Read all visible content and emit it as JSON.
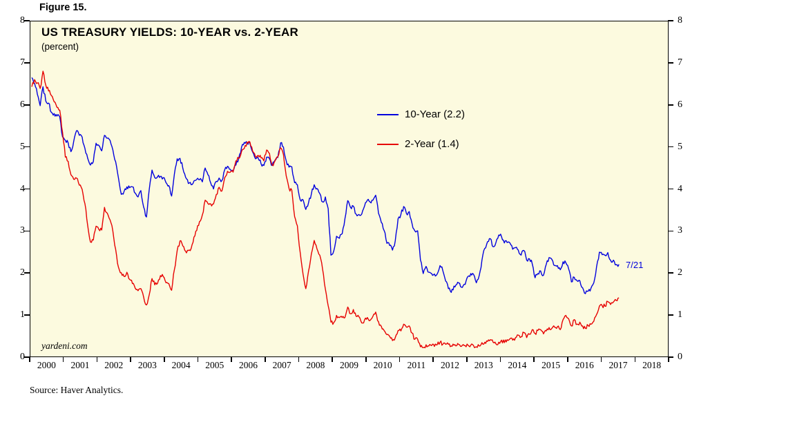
{
  "figure": {
    "label": "Figure 15.",
    "source": "Source: Haver Analytics.",
    "watermark": "yardeni.com",
    "annotation": "7/21"
  },
  "chart_data": {
    "type": "line",
    "title": "US TREASURY YIELDS: 10-YEAR vs. 2-YEAR",
    "subtitle": "(percent)",
    "ylim": [
      0,
      8
    ],
    "y_ticks": [
      0,
      1,
      2,
      3,
      4,
      5,
      6,
      7,
      8
    ],
    "y_axis_sides": "both",
    "x_range_years": [
      2000,
      2019
    ],
    "x_tick_years": [
      2000,
      2001,
      2002,
      2003,
      2004,
      2005,
      2006,
      2007,
      2008,
      2009,
      2010,
      2011,
      2012,
      2013,
      2014,
      2015,
      2016,
      2017,
      2018
    ],
    "frequency": "monthly",
    "x_start": "2000-01",
    "x_end": "2017-07",
    "grid": false,
    "plot_background": "#FCFADF",
    "legend_position": "upper-middle",
    "legend": [
      {
        "label": "10-Year (2.2)"
      },
      {
        "label": "2-Year (1.4)"
      }
    ],
    "series": [
      {
        "name": "10-Year",
        "latest_value": 2.2,
        "color": "#0000DD",
        "values": [
          6.66,
          6.52,
          6.26,
          5.99,
          6.44,
          6.1,
          6.05,
          5.83,
          5.8,
          5.74,
          5.72,
          5.24,
          5.16,
          5.1,
          4.89,
          5.14,
          5.39,
          5.28,
          5.24,
          4.97,
          4.73,
          4.57,
          4.65,
          5.09,
          5.04,
          4.91,
          5.28,
          5.21,
          5.16,
          4.93,
          4.65,
          4.26,
          3.87,
          3.94,
          4.05,
          4.03,
          4.05,
          3.9,
          3.81,
          3.96,
          3.57,
          3.33,
          3.98,
          4.45,
          4.27,
          4.29,
          4.3,
          4.27,
          4.15,
          4.08,
          3.83,
          4.35,
          4.72,
          4.73,
          4.5,
          4.28,
          4.13,
          4.1,
          4.19,
          4.23,
          4.22,
          4.17,
          4.5,
          4.34,
          4.14,
          4.0,
          4.18,
          4.26,
          4.2,
          4.46,
          4.54,
          4.47,
          4.42,
          4.57,
          4.72,
          4.99,
          5.11,
          5.11,
          5.09,
          4.88,
          4.72,
          4.73,
          4.6,
          4.56,
          4.76,
          4.72,
          4.56,
          4.69,
          4.75,
          5.1,
          5.0,
          4.67,
          4.52,
          4.53,
          4.15,
          4.1,
          3.74,
          3.74,
          3.51,
          3.68,
          3.88,
          4.1,
          4.01,
          3.89,
          3.69,
          3.81,
          3.53,
          2.42,
          2.52,
          2.87,
          2.82,
          2.93,
          3.29,
          3.72,
          3.56,
          3.59,
          3.4,
          3.39,
          3.4,
          3.59,
          3.73,
          3.69,
          3.73,
          3.85,
          3.42,
          3.2,
          3.01,
          2.7,
          2.65,
          2.54,
          2.76,
          3.29,
          3.39,
          3.58,
          3.41,
          3.46,
          3.17,
          3.0,
          3.0,
          2.3,
          1.98,
          2.15,
          2.01,
          1.98,
          1.97,
          1.97,
          2.17,
          2.05,
          1.8,
          1.62,
          1.53,
          1.68,
          1.72,
          1.75,
          1.65,
          1.72,
          1.91,
          1.98,
          1.96,
          1.76,
          1.93,
          2.3,
          2.58,
          2.74,
          2.81,
          2.62,
          2.72,
          2.9,
          2.86,
          2.71,
          2.72,
          2.71,
          2.56,
          2.6,
          2.54,
          2.42,
          2.53,
          2.3,
          2.33,
          2.21,
          1.88,
          1.98,
          2.04,
          1.94,
          2.2,
          2.36,
          2.32,
          2.17,
          2.17,
          2.07,
          2.26,
          2.24,
          2.09,
          1.78,
          1.89,
          1.81,
          1.81,
          1.64,
          1.5,
          1.56,
          1.63,
          1.76,
          2.14,
          2.49,
          2.43,
          2.42,
          2.48,
          2.3,
          2.3,
          2.19,
          2.2
        ]
      },
      {
        "name": "2-Year",
        "latest_value": 1.4,
        "color": "#E60000",
        "values": [
          6.44,
          6.61,
          6.53,
          6.4,
          6.81,
          6.48,
          6.34,
          6.23,
          6.08,
          5.95,
          5.88,
          5.35,
          4.76,
          4.66,
          4.34,
          4.23,
          4.26,
          4.09,
          3.99,
          3.65,
          3.12,
          2.73,
          2.78,
          3.11,
          3.03,
          3.02,
          3.56,
          3.42,
          3.26,
          2.99,
          2.56,
          2.13,
          2.0,
          1.91,
          2.01,
          1.84,
          1.74,
          1.63,
          1.57,
          1.62,
          1.42,
          1.23,
          1.47,
          1.86,
          1.71,
          1.75,
          1.93,
          1.91,
          1.76,
          1.74,
          1.58,
          2.07,
          2.53,
          2.76,
          2.64,
          2.51,
          2.53,
          2.58,
          2.85,
          3.01,
          3.22,
          3.38,
          3.73,
          3.65,
          3.64,
          3.64,
          3.87,
          4.04,
          3.95,
          4.27,
          4.42,
          4.4,
          4.4,
          4.67,
          4.73,
          4.89,
          4.97,
          5.12,
          5.12,
          4.9,
          4.77,
          4.8,
          4.74,
          4.67,
          4.93,
          4.85,
          4.57,
          4.67,
          4.77,
          4.98,
          4.82,
          4.31,
          4.01,
          3.97,
          3.34,
          3.12,
          2.48,
          1.97,
          1.62,
          2.05,
          2.45,
          2.77,
          2.57,
          2.42,
          2.08,
          1.61,
          1.21,
          0.82,
          0.81,
          0.98,
          0.93,
          0.93,
          0.93,
          1.18,
          1.02,
          1.12,
          0.96,
          0.95,
          0.8,
          0.87,
          0.93,
          0.86,
          0.96,
          1.06,
          0.83,
          0.72,
          0.62,
          0.52,
          0.48,
          0.38,
          0.45,
          0.62,
          0.61,
          0.77,
          0.7,
          0.73,
          0.56,
          0.41,
          0.41,
          0.23,
          0.21,
          0.28,
          0.25,
          0.26,
          0.24,
          0.28,
          0.34,
          0.29,
          0.29,
          0.29,
          0.25,
          0.27,
          0.26,
          0.28,
          0.27,
          0.26,
          0.27,
          0.27,
          0.26,
          0.23,
          0.25,
          0.33,
          0.34,
          0.36,
          0.4,
          0.34,
          0.3,
          0.34,
          0.39,
          0.33,
          0.4,
          0.42,
          0.39,
          0.45,
          0.51,
          0.47,
          0.57,
          0.45,
          0.53,
          0.64,
          0.55,
          0.62,
          0.64,
          0.54,
          0.61,
          0.69,
          0.67,
          0.7,
          0.71,
          0.64,
          0.88,
          0.98,
          0.9,
          0.73,
          0.88,
          0.77,
          0.82,
          0.73,
          0.67,
          0.74,
          0.77,
          0.84,
          1.0,
          1.2,
          1.21,
          1.2,
          1.31,
          1.24,
          1.3,
          1.34,
          1.4
        ]
      }
    ]
  }
}
